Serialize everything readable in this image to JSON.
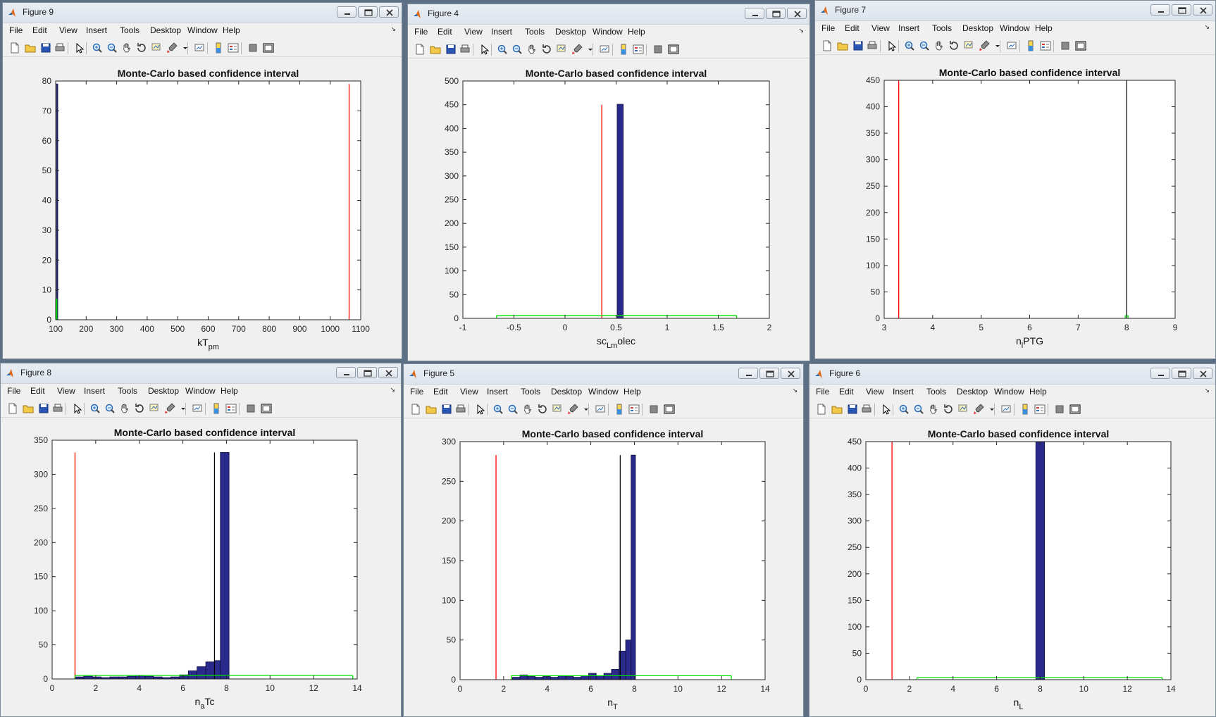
{
  "menus": [
    "File",
    "Edit",
    "View",
    "Insert",
    "Tools",
    "Desktop",
    "Window",
    "Help"
  ],
  "dock_glyph": "↘",
  "colors": {
    "bar_fill": "#2a2a8c",
    "bar_stroke": "#10103f",
    "red_line": "#ff0000",
    "black_line": "#000000",
    "green_line": "#00e000"
  },
  "toolbar_icons": [
    "new-figure-icon",
    "open-file-icon",
    "save-icon",
    "print-icon",
    "select-arrow-icon",
    "zoom-in-icon",
    "zoom-out-icon",
    "pan-hand-icon",
    "rotate-3d-icon",
    "data-cursor-icon",
    "brush-icon",
    "brush-dropdown-icon",
    "link-plot-icon",
    "colorbar-icon",
    "legend-icon",
    "hide-tools-icon",
    "show-tools-icon"
  ],
  "figures": [
    {
      "title": "Figure 9",
      "chart_data": {
        "type": "bar",
        "title": "Monte-Carlo based confidence interval",
        "xlabel": "kT",
        "xlabel_sub": "pm",
        "ylabel": "",
        "xlim": [
          100,
          1100
        ],
        "ylim": [
          0,
          80
        ],
        "xticks": [
          100,
          200,
          300,
          400,
          500,
          600,
          700,
          800,
          900,
          1000,
          1100
        ],
        "yticks": [
          0,
          10,
          20,
          30,
          40,
          50,
          60,
          70,
          80
        ],
        "bars": [
          {
            "x0": 103,
            "x1": 107,
            "h": 79
          }
        ],
        "red_lines": [
          {
            "x": 1062,
            "h": 79
          }
        ],
        "black_lines": [],
        "green_ci": {
          "x0": 102,
          "x1": 104,
          "h": 7
        }
      }
    },
    {
      "title": "Figure 4",
      "chart_data": {
        "type": "bar",
        "title": "Monte-Carlo based confidence interval",
        "xlabel": "sc",
        "xlabel_sub": "Lm",
        "xlabel_after": "olec",
        "ylabel": "",
        "xlim": [
          -1,
          2
        ],
        "ylim": [
          0,
          500
        ],
        "xticks": [
          -1,
          -0.5,
          0,
          0.5,
          1,
          1.5,
          2
        ],
        "yticks": [
          0,
          50,
          100,
          150,
          200,
          250,
          300,
          350,
          400,
          450,
          500
        ],
        "bars": [
          {
            "x0": 0.51,
            "x1": 0.57,
            "h": 451
          }
        ],
        "red_lines": [
          {
            "x": 0.36,
            "h": 450
          }
        ],
        "black_lines": [],
        "green_ci": {
          "x0": -0.67,
          "x1": 1.68,
          "h": 6
        }
      }
    },
    {
      "title": "Figure 7",
      "chart_data": {
        "type": "bar",
        "title": "Monte-Carlo based confidence interval",
        "xlabel": "n",
        "xlabel_sub": "l",
        "xlabel_after": "PTG",
        "ylabel": "",
        "xlim": [
          3,
          9
        ],
        "ylim": [
          0,
          450
        ],
        "xticks": [
          3,
          4,
          5,
          6,
          7,
          8,
          9
        ],
        "yticks": [
          0,
          50,
          100,
          150,
          200,
          250,
          300,
          350,
          400,
          450
        ],
        "bars": [],
        "red_lines": [
          {
            "x": 3.3,
            "h": 450
          }
        ],
        "black_lines": [
          {
            "x": 8,
            "h": 450
          }
        ],
        "green_ci": {
          "x0": 7.97,
          "x1": 8.03,
          "h": 5
        }
      }
    },
    {
      "title": "Figure 8",
      "chart_data": {
        "type": "bar",
        "title": "Monte-Carlo based confidence interval",
        "xlabel": "n",
        "xlabel_sub": "a",
        "xlabel_after": "Tc",
        "ylabel": "",
        "xlim": [
          0,
          14
        ],
        "ylim": [
          0,
          350
        ],
        "xticks": [
          0,
          2,
          4,
          6,
          8,
          10,
          12,
          14
        ],
        "yticks": [
          0,
          50,
          100,
          150,
          200,
          250,
          300,
          350
        ],
        "bars": [
          {
            "x0": 1.05,
            "x1": 1.45,
            "h": 3
          },
          {
            "x0": 1.45,
            "x1": 1.85,
            "h": 4
          },
          {
            "x0": 1.85,
            "x1": 2.25,
            "h": 3
          },
          {
            "x0": 2.25,
            "x1": 2.65,
            "h": 2
          },
          {
            "x0": 2.65,
            "x1": 3.05,
            "h": 3
          },
          {
            "x0": 3.05,
            "x1": 3.45,
            "h": 3
          },
          {
            "x0": 3.45,
            "x1": 3.85,
            "h": 4
          },
          {
            "x0": 3.85,
            "x1": 4.25,
            "h": 5
          },
          {
            "x0": 4.25,
            "x1": 4.65,
            "h": 4
          },
          {
            "x0": 4.65,
            "x1": 5.05,
            "h": 3
          },
          {
            "x0": 5.05,
            "x1": 5.45,
            "h": 2
          },
          {
            "x0": 5.45,
            "x1": 5.85,
            "h": 3
          },
          {
            "x0": 5.85,
            "x1": 6.25,
            "h": 6
          },
          {
            "x0": 6.25,
            "x1": 6.65,
            "h": 12
          },
          {
            "x0": 6.65,
            "x1": 7.05,
            "h": 18
          },
          {
            "x0": 7.05,
            "x1": 7.45,
            "h": 25
          },
          {
            "x0": 7.45,
            "x1": 7.85,
            "h": 27
          },
          {
            "x0": 7.72,
            "x1": 8.12,
            "h": 332
          }
        ],
        "red_lines": [
          {
            "x": 1.05,
            "h": 332
          }
        ],
        "black_lines": [
          {
            "x": 7.45,
            "h": 332
          }
        ],
        "green_ci": {
          "x0": 1.05,
          "x1": 13.8,
          "h": 5
        }
      }
    },
    {
      "title": "Figure 5",
      "chart_data": {
        "type": "bar",
        "title": "Monte-Carlo based confidence interval",
        "xlabel": "n",
        "xlabel_sub": "T",
        "xlabel_after": "",
        "ylabel": "",
        "xlim": [
          0,
          14
        ],
        "ylim": [
          0,
          300
        ],
        "xticks": [
          0,
          2,
          4,
          6,
          8,
          10,
          12,
          14
        ],
        "yticks": [
          0,
          50,
          100,
          150,
          200,
          250,
          300
        ],
        "bars": [
          {
            "x0": 2.4,
            "x1": 2.75,
            "h": 3
          },
          {
            "x0": 2.75,
            "x1": 3.1,
            "h": 6
          },
          {
            "x0": 3.1,
            "x1": 3.45,
            "h": 4
          },
          {
            "x0": 3.45,
            "x1": 3.8,
            "h": 3
          },
          {
            "x0": 3.8,
            "x1": 4.15,
            "h": 4
          },
          {
            "x0": 4.15,
            "x1": 4.5,
            "h": 3
          },
          {
            "x0": 4.5,
            "x1": 4.85,
            "h": 5
          },
          {
            "x0": 4.85,
            "x1": 5.2,
            "h": 4
          },
          {
            "x0": 5.2,
            "x1": 5.55,
            "h": 3
          },
          {
            "x0": 5.55,
            "x1": 5.9,
            "h": 5
          },
          {
            "x0": 5.9,
            "x1": 6.25,
            "h": 8
          },
          {
            "x0": 6.25,
            "x1": 6.6,
            "h": 5
          },
          {
            "x0": 6.6,
            "x1": 6.95,
            "h": 8
          },
          {
            "x0": 6.95,
            "x1": 7.3,
            "h": 13
          },
          {
            "x0": 7.3,
            "x1": 7.6,
            "h": 36
          },
          {
            "x0": 7.6,
            "x1": 7.85,
            "h": 50
          },
          {
            "x0": 7.85,
            "x1": 8.05,
            "h": 283
          }
        ],
        "red_lines": [
          {
            "x": 1.65,
            "h": 283
          }
        ],
        "black_lines": [
          {
            "x": 7.35,
            "h": 283
          }
        ],
        "green_ci": {
          "x0": 2.35,
          "x1": 12.45,
          "h": 5
        }
      }
    },
    {
      "title": "Figure 6",
      "chart_data": {
        "type": "bar",
        "title": "Monte-Carlo based confidence interval",
        "xlabel": "n",
        "xlabel_sub": "L",
        "xlabel_after": "",
        "ylabel": "",
        "xlim": [
          0,
          14
        ],
        "ylim": [
          0,
          450
        ],
        "xticks": [
          0,
          2,
          4,
          6,
          8,
          10,
          12,
          14
        ],
        "yticks": [
          0,
          50,
          100,
          150,
          200,
          250,
          300,
          350,
          400,
          450
        ],
        "bars": [
          {
            "x0": 7.8,
            "x1": 8.2,
            "h": 450
          }
        ],
        "red_lines": [
          {
            "x": 1.2,
            "h": 450
          }
        ],
        "black_lines": [],
        "green_ci": {
          "x0": 2.35,
          "x1": 13.6,
          "h": 4
        }
      }
    }
  ]
}
